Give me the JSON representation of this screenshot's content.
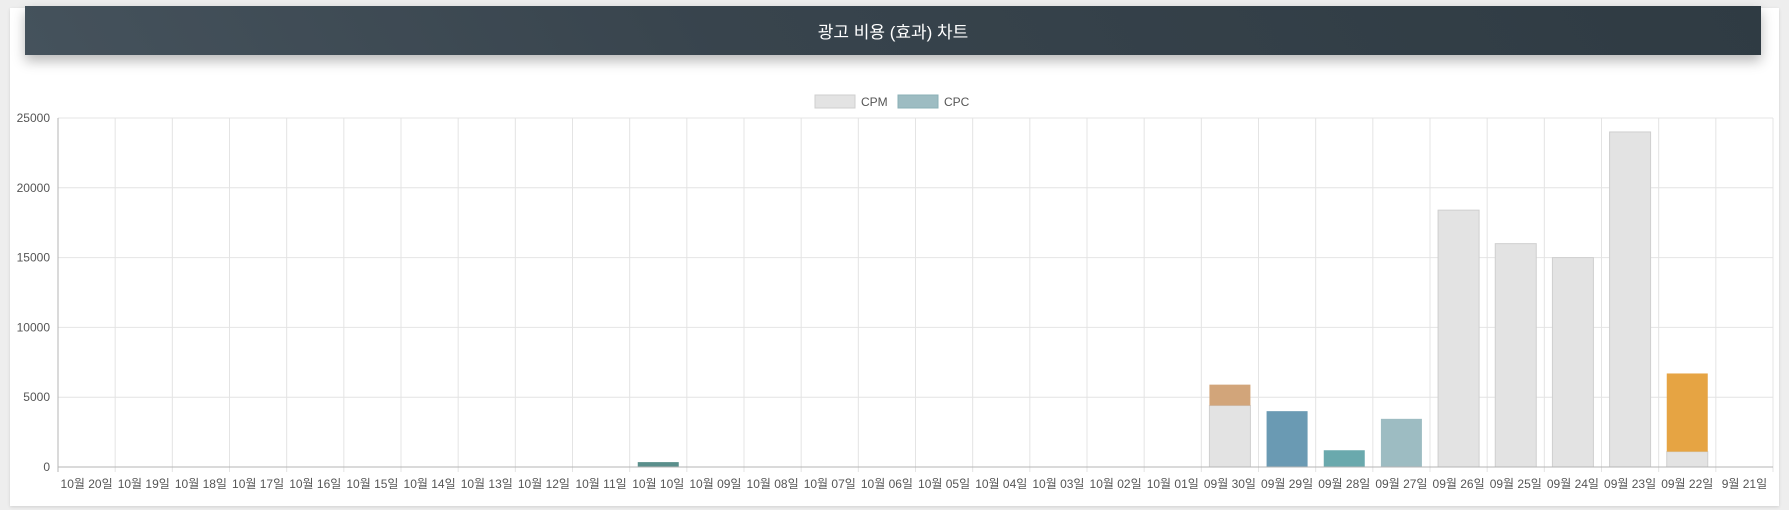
{
  "header": {
    "title": "광고 비용 (효과) 차트"
  },
  "colors": {
    "cpm_fill": "#e3e3e3",
    "cpm_stroke": "#cfcfcf",
    "cpc_fill": "#9dbcc2",
    "cpc_stroke": "#8bb0b7",
    "grid": "#e4e4e4",
    "axis": "#b5b5b5",
    "tick_text": "#555555"
  },
  "chart_data": {
    "type": "bar",
    "stacked": true,
    "grid": true,
    "legend_position": "top-center",
    "ylim": [
      0,
      25000
    ],
    "y_ticks": [
      "0",
      "5000",
      "10000",
      "15000",
      "20000",
      "25000"
    ],
    "categories": [
      "10월 20일",
      "10월 19일",
      "10월 18일",
      "10월 17일",
      "10월 16일",
      "10월 15일",
      "10월 14일",
      "10월 13일",
      "10월 12일",
      "10월 11일",
      "10월 10일",
      "10월 09일",
      "10월 08일",
      "10월 07일",
      "10월 06일",
      "10월 05일",
      "10월 04일",
      "10월 03일",
      "10월 02일",
      "10월 01일",
      "09월 30일",
      "09월 29일",
      "09월 28일",
      "09월 27일",
      "09월 26일",
      "09월 25일",
      "09월 24일",
      "09월 23일",
      "09월 22일",
      "9월 21일"
    ],
    "series": [
      {
        "name": "CPM",
        "values": [
          0,
          0,
          0,
          0,
          0,
          0,
          0,
          0,
          0,
          0,
          0,
          0,
          0,
          0,
          0,
          0,
          0,
          0,
          0,
          0,
          4400,
          0,
          0,
          0,
          18400,
          16000,
          15000,
          24000,
          1100,
          0
        ],
        "bar_colors": [
          "#e3e3e3",
          "#e3e3e3",
          "#e3e3e3",
          "#e3e3e3",
          "#e3e3e3",
          "#e3e3e3",
          "#e3e3e3",
          "#e3e3e3",
          "#e3e3e3",
          "#e3e3e3",
          "#e3e3e3",
          "#e3e3e3",
          "#e3e3e3",
          "#e3e3e3",
          "#e3e3e3",
          "#e3e3e3",
          "#e3e3e3",
          "#e3e3e3",
          "#e3e3e3",
          "#e3e3e3",
          "#e3e3e3",
          "#e3e3e3",
          "#e3e3e3",
          "#e3e3e3",
          "#e3e3e3",
          "#e3e3e3",
          "#e3e3e3",
          "#e3e3e3",
          "#e3e3e3",
          "#e3e3e3"
        ]
      },
      {
        "name": "CPC",
        "values": [
          0,
          0,
          0,
          0,
          0,
          0,
          0,
          0,
          0,
          0,
          350,
          0,
          0,
          0,
          0,
          0,
          0,
          0,
          0,
          0,
          1500,
          4000,
          1200,
          3450,
          0,
          0,
          0,
          0,
          5600,
          0
        ],
        "bar_colors": [
          "#9dbcc2",
          "#9dbcc2",
          "#9dbcc2",
          "#9dbcc2",
          "#9dbcc2",
          "#9dbcc2",
          "#9dbcc2",
          "#9dbcc2",
          "#9dbcc2",
          "#9dbcc2",
          "#5a8f8c",
          "#9dbcc2",
          "#9dbcc2",
          "#9dbcc2",
          "#9dbcc2",
          "#9dbcc2",
          "#9dbcc2",
          "#9dbcc2",
          "#9dbcc2",
          "#9dbcc2",
          "#d2a57a",
          "#6a9ab3",
          "#6aa9ad",
          "#9dbcc2",
          "#9dbcc2",
          "#9dbcc2",
          "#9dbcc2",
          "#9dbcc2",
          "#e6a443",
          "#9dbcc2"
        ]
      }
    ]
  }
}
